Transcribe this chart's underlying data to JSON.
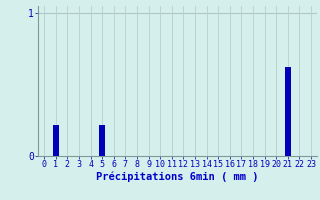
{
  "categories": [
    0,
    1,
    2,
    3,
    4,
    5,
    6,
    7,
    8,
    9,
    10,
    11,
    12,
    13,
    14,
    15,
    16,
    17,
    18,
    19,
    20,
    21,
    22,
    23
  ],
  "values": [
    0,
    0.22,
    0,
    0,
    0,
    0.22,
    0,
    0,
    0,
    0,
    0,
    0,
    0,
    0,
    0,
    0,
    0,
    0,
    0,
    0,
    0,
    0.62,
    0,
    0
  ],
  "bar_color": "#0000bb",
  "xlabel": "Précipitations 6min ( mm )",
  "ylim": [
    0,
    1.05
  ],
  "xlim": [
    -0.5,
    23.5
  ],
  "yticks": [
    0,
    1
  ],
  "ytick_labels": [
    "0",
    "1"
  ],
  "background_color": "#d5f0ec",
  "grid_color": "#b8ceca",
  "axis_color": "#7a9a96",
  "xlabel_color": "#0000cc",
  "tick_color": "#0000bb",
  "xlabel_fontsize": 7.5,
  "tick_fontsize": 6.0,
  "bar_width": 0.5,
  "hline_y": 1.0,
  "hline_color": "#b0c8c4"
}
